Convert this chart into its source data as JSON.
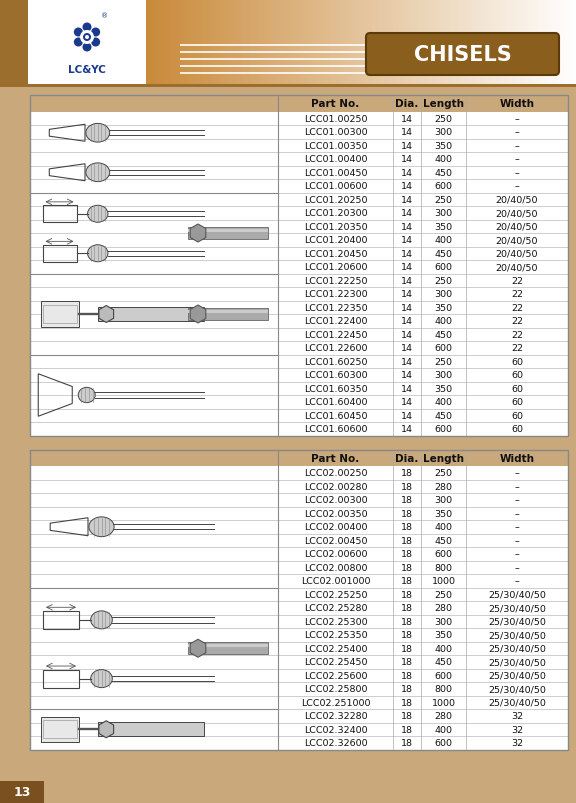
{
  "title": "CHISELS",
  "page_num": "13",
  "bg_color": "#c9a87c",
  "header_dark": "#9b6e2e",
  "header_light": "#d4a855",
  "table_header_bg": "#c9a87c",
  "border_color": "#999999",
  "title_color": "#ffffff",
  "text_color": "#222222",
  "logo_color": "#1a3a8c",
  "table1_header": [
    "Part No.",
    "Dia.",
    "Length",
    "Width"
  ],
  "table1_rows": [
    [
      "LCC01.00250",
      "14",
      "250",
      "–"
    ],
    [
      "LCC01.00300",
      "14",
      "300",
      "–"
    ],
    [
      "LCC01.00350",
      "14",
      "350",
      "–"
    ],
    [
      "LCC01.00400",
      "14",
      "400",
      "–"
    ],
    [
      "LCC01.00450",
      "14",
      "450",
      "–"
    ],
    [
      "LCC01.00600",
      "14",
      "600",
      "–"
    ],
    [
      "LCC01.20250",
      "14",
      "250",
      "20/40/50"
    ],
    [
      "LCC01.20300",
      "14",
      "300",
      "20/40/50"
    ],
    [
      "LCC01.20350",
      "14",
      "350",
      "20/40/50"
    ],
    [
      "LCC01.20400",
      "14",
      "400",
      "20/40/50"
    ],
    [
      "LCC01.20450",
      "14",
      "450",
      "20/40/50"
    ],
    [
      "LCC01.20600",
      "14",
      "600",
      "20/40/50"
    ],
    [
      "LCC01.22250",
      "14",
      "250",
      "22"
    ],
    [
      "LCC01.22300",
      "14",
      "300",
      "22"
    ],
    [
      "LCC01.22350",
      "14",
      "350",
      "22"
    ],
    [
      "LCC01.22400",
      "14",
      "400",
      "22"
    ],
    [
      "LCC01.22450",
      "14",
      "450",
      "22"
    ],
    [
      "LCC01.22600",
      "14",
      "600",
      "22"
    ],
    [
      "LCC01.60250",
      "14",
      "250",
      "60"
    ],
    [
      "LCC01.60300",
      "14",
      "300",
      "60"
    ],
    [
      "LCC01.60350",
      "14",
      "350",
      "60"
    ],
    [
      "LCC01.60400",
      "14",
      "400",
      "60"
    ],
    [
      "LCC01.60450",
      "14",
      "450",
      "60"
    ],
    [
      "LCC01.60600",
      "14",
      "600",
      "60"
    ]
  ],
  "table1_groups": [
    6,
    6,
    6,
    6
  ],
  "table2_header": [
    "Part No.",
    "Dia.",
    "Length",
    "Width"
  ],
  "table2_rows": [
    [
      "LCC02.00250",
      "18",
      "250",
      "–"
    ],
    [
      "LCC02.00280",
      "18",
      "280",
      "–"
    ],
    [
      "LCC02.00300",
      "18",
      "300",
      "–"
    ],
    [
      "LCC02.00350",
      "18",
      "350",
      "–"
    ],
    [
      "LCC02.00400",
      "18",
      "400",
      "–"
    ],
    [
      "LCC02.00450",
      "18",
      "450",
      "–"
    ],
    [
      "LCC02.00600",
      "18",
      "600",
      "–"
    ],
    [
      "LCC02.00800",
      "18",
      "800",
      "–"
    ],
    [
      "LCC02.001000",
      "18",
      "1000",
      "–"
    ],
    [
      "LCC02.25250",
      "18",
      "250",
      "25/30/40/50"
    ],
    [
      "LCC02.25280",
      "18",
      "280",
      "25/30/40/50"
    ],
    [
      "LCC02.25300",
      "18",
      "300",
      "25/30/40/50"
    ],
    [
      "LCC02.25350",
      "18",
      "350",
      "25/30/40/50"
    ],
    [
      "LCC02.25400",
      "18",
      "400",
      "25/30/40/50"
    ],
    [
      "LCC02.25450",
      "18",
      "450",
      "25/30/40/50"
    ],
    [
      "LCC02.25600",
      "18",
      "600",
      "25/30/40/50"
    ],
    [
      "LCC02.25800",
      "18",
      "800",
      "25/30/40/50"
    ],
    [
      "LCC02.251000",
      "18",
      "1000",
      "25/30/40/50"
    ],
    [
      "LCC02.32280",
      "18",
      "280",
      "32"
    ],
    [
      "LCC02.32400",
      "18",
      "400",
      "32"
    ],
    [
      "LCC02.32600",
      "18",
      "600",
      "32"
    ]
  ],
  "table2_groups": [
    9,
    9,
    3
  ]
}
